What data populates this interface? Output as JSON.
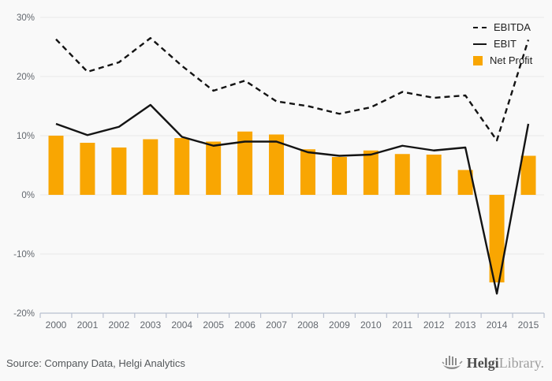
{
  "chart_data": {
    "type": "bar+line combo",
    "title": "",
    "x": [
      "2000",
      "2001",
      "2002",
      "2003",
      "2004",
      "2005",
      "2006",
      "2007",
      "2008",
      "2009",
      "2010",
      "2011",
      "2012",
      "2013",
      "2014",
      "2015"
    ],
    "series": [
      {
        "name": "EBITDA",
        "type": "line",
        "style": "dashed",
        "values": [
          26.3,
          20.8,
          22.4,
          26.5,
          21.8,
          17.6,
          19.3,
          15.8,
          15.0,
          13.7,
          14.8,
          17.4,
          16.4,
          16.8,
          9.2,
          26.2
        ]
      },
      {
        "name": "EBIT",
        "type": "line",
        "style": "solid",
        "values": [
          12.0,
          10.1,
          11.5,
          15.2,
          9.8,
          8.3,
          9.0,
          9.0,
          7.2,
          6.6,
          6.8,
          8.3,
          7.5,
          8.0,
          -16.7,
          12.0
        ]
      },
      {
        "name": "Net Profit",
        "type": "bar",
        "values": [
          10.0,
          8.8,
          8.0,
          9.4,
          9.6,
          9.0,
          10.7,
          10.2,
          7.7,
          6.4,
          7.5,
          6.9,
          6.8,
          4.2,
          -14.8,
          6.6
        ]
      }
    ],
    "ylim": [
      -20,
      30
    ],
    "yticks": [
      30,
      20,
      10,
      0,
      -10,
      -20
    ],
    "ytick_labels": [
      "30%",
      "20%",
      "10%",
      "0%",
      "-10%",
      "-20%"
    ],
    "unit": "%",
    "grid": true,
    "legend_position": "top-right",
    "xlabel": "",
    "ylabel": ""
  },
  "colors": {
    "bar": "#F9A602",
    "line": "#141414",
    "grid": "#e9e9e9",
    "axis": "#b9c0d0",
    "tick_text": "#62676e",
    "background": "#f9f9f9"
  },
  "footer": {
    "source_text": "Source: Company Data, Helgi Analytics"
  },
  "branding": {
    "logo_bold": "Helgi",
    "logo_light": "Library."
  }
}
